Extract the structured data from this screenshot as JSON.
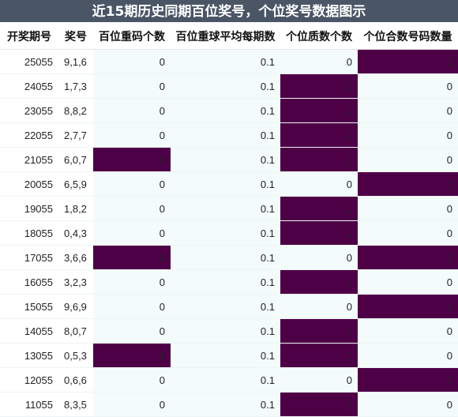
{
  "title": "近15期历史同期百位奖号，个位奖号数据图示",
  "columns": [
    "开奖期号",
    "奖号",
    "百位重码个数",
    "百位重球平均每期数",
    "个位质数个数",
    "个位合数号码数量"
  ],
  "colors": {
    "header_bg": "#4a5566",
    "highlight": "#4e0047",
    "row_bg": "#f3fbfb"
  },
  "rows": [
    {
      "issue": "25055",
      "code": "9,1,6",
      "hundreds_repeat": "0",
      "avg": "0.1",
      "prime": "0",
      "composite": "1"
    },
    {
      "issue": "24055",
      "code": "1,7,3",
      "hundreds_repeat": "0",
      "avg": "0.1",
      "prime": "1",
      "composite": "0"
    },
    {
      "issue": "23055",
      "code": "8,8,2",
      "hundreds_repeat": "0",
      "avg": "0.1",
      "prime": "1",
      "composite": "0"
    },
    {
      "issue": "22055",
      "code": "2,7,7",
      "hundreds_repeat": "0",
      "avg": "0.1",
      "prime": "1",
      "composite": "0"
    },
    {
      "issue": "21055",
      "code": "6,0,7",
      "hundreds_repeat": "1",
      "avg": "0.1",
      "prime": "1",
      "composite": "0"
    },
    {
      "issue": "20055",
      "code": "6,5,9",
      "hundreds_repeat": "0",
      "avg": "0.1",
      "prime": "0",
      "composite": "1"
    },
    {
      "issue": "19055",
      "code": "1,8,2",
      "hundreds_repeat": "0",
      "avg": "0.1",
      "prime": "1",
      "composite": "0"
    },
    {
      "issue": "18055",
      "code": "0,4,3",
      "hundreds_repeat": "0",
      "avg": "0.1",
      "prime": "1",
      "composite": "0"
    },
    {
      "issue": "17055",
      "code": "3,6,6",
      "hundreds_repeat": "1",
      "avg": "0.1",
      "prime": "0",
      "composite": "1"
    },
    {
      "issue": "16055",
      "code": "3,2,3",
      "hundreds_repeat": "0",
      "avg": "0.1",
      "prime": "1",
      "composite": "0"
    },
    {
      "issue": "15055",
      "code": "9,6,9",
      "hundreds_repeat": "0",
      "avg": "0.1",
      "prime": "0",
      "composite": "1"
    },
    {
      "issue": "14055",
      "code": "8,0,7",
      "hundreds_repeat": "0",
      "avg": "0.1",
      "prime": "1",
      "composite": "0"
    },
    {
      "issue": "13055",
      "code": "0,5,3",
      "hundreds_repeat": "1",
      "avg": "0.1",
      "prime": "1",
      "composite": "0"
    },
    {
      "issue": "12055",
      "code": "0,6,6",
      "hundreds_repeat": "0",
      "avg": "0.1",
      "prime": "0",
      "composite": "1"
    },
    {
      "issue": "11055",
      "code": "8,3,5",
      "hundreds_repeat": "0",
      "avg": "0.1",
      "prime": "1",
      "composite": "0"
    }
  ]
}
